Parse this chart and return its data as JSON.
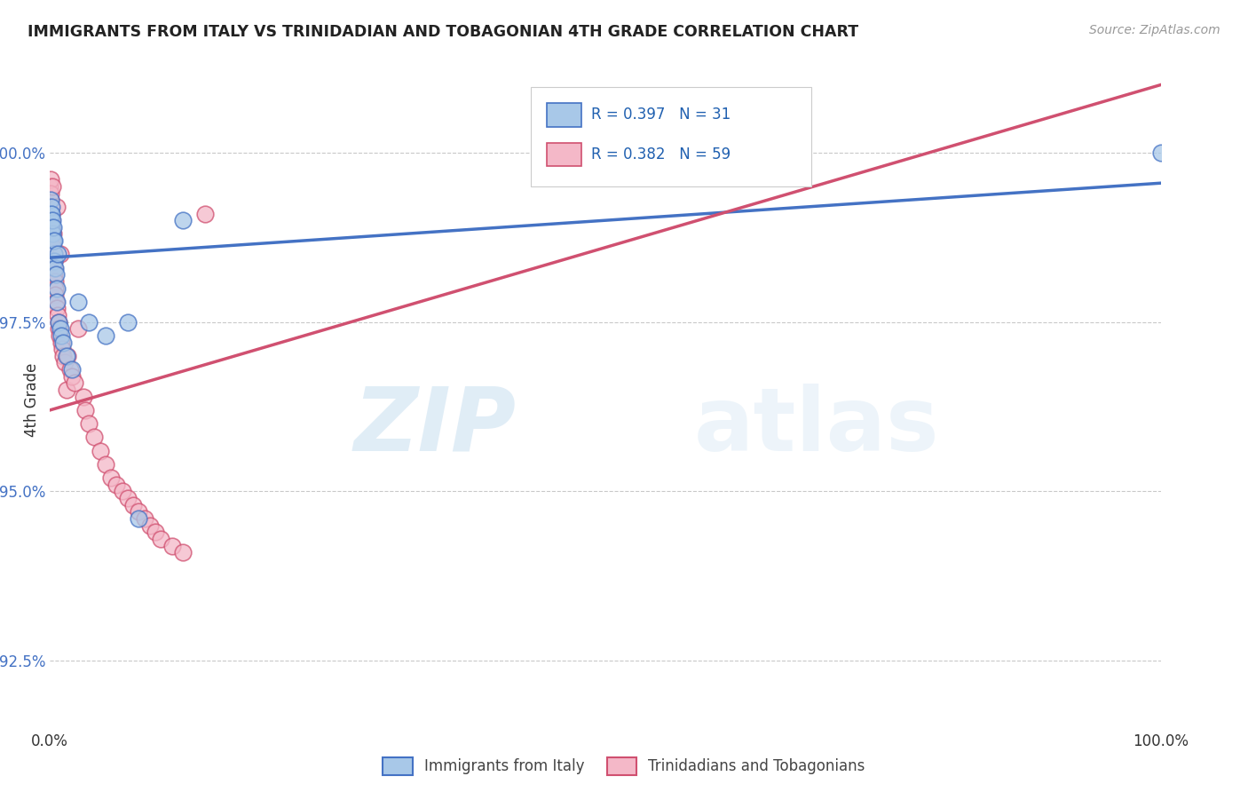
{
  "title": "IMMIGRANTS FROM ITALY VS TRINIDADIAN AND TOBAGONIAN 4TH GRADE CORRELATION CHART",
  "source": "Source: ZipAtlas.com",
  "ylabel": "4th Grade",
  "r_italy": 0.397,
  "n_italy": 31,
  "r_trint": 0.382,
  "n_trint": 59,
  "xlim": [
    0.0,
    100.0
  ],
  "ylim": [
    91.5,
    101.2
  ],
  "yticks": [
    92.5,
    95.0,
    97.5,
    100.0
  ],
  "ytick_labels": [
    "92.5%",
    "95.0%",
    "97.5%",
    "100.0%"
  ],
  "watermark_zip": "ZIP",
  "watermark_atlas": "atlas",
  "color_italy": "#a8c8e8",
  "color_trint": "#f4b8c8",
  "line_italy": "#4472c4",
  "line_trint": "#d05070",
  "italy_x": [
    0.05,
    0.08,
    0.1,
    0.12,
    0.15,
    0.18,
    0.2,
    0.25,
    0.28,
    0.3,
    0.35,
    0.38,
    0.42,
    0.48,
    0.55,
    0.6,
    0.65,
    0.7,
    0.8,
    0.9,
    1.0,
    1.2,
    1.5,
    2.0,
    2.5,
    3.5,
    5.0,
    7.0,
    8.0,
    12.0,
    100.0
  ],
  "italy_y": [
    99.1,
    99.3,
    99.0,
    99.2,
    99.1,
    98.9,
    98.8,
    99.0,
    98.7,
    98.9,
    98.5,
    98.7,
    98.4,
    98.3,
    98.2,
    98.0,
    97.8,
    98.5,
    97.5,
    97.4,
    97.3,
    97.2,
    97.0,
    96.8,
    97.8,
    97.5,
    97.3,
    97.5,
    94.6,
    99.0,
    100.0
  ],
  "trint_x": [
    0.02,
    0.04,
    0.06,
    0.08,
    0.1,
    0.12,
    0.14,
    0.16,
    0.18,
    0.2,
    0.22,
    0.25,
    0.28,
    0.3,
    0.32,
    0.35,
    0.38,
    0.4,
    0.42,
    0.45,
    0.48,
    0.5,
    0.55,
    0.6,
    0.65,
    0.7,
    0.75,
    0.8,
    0.85,
    0.9,
    1.0,
    1.1,
    1.2,
    1.3,
    1.5,
    1.6,
    1.8,
    2.0,
    2.2,
    2.5,
    3.0,
    3.2,
    3.5,
    4.0,
    4.5,
    5.0,
    5.5,
    6.0,
    6.5,
    7.0,
    7.5,
    8.0,
    8.5,
    9.0,
    9.5,
    10.0,
    11.0,
    12.0,
    14.0
  ],
  "trint_y": [
    99.5,
    99.3,
    99.6,
    99.4,
    99.2,
    99.1,
    99.0,
    99.0,
    98.9,
    99.5,
    98.8,
    98.7,
    98.6,
    98.8,
    98.5,
    98.4,
    98.3,
    98.5,
    98.2,
    98.1,
    98.0,
    97.9,
    97.8,
    99.2,
    97.7,
    97.6,
    97.5,
    97.4,
    97.3,
    98.5,
    97.2,
    97.1,
    97.0,
    96.9,
    96.5,
    97.0,
    96.8,
    96.7,
    96.6,
    97.4,
    96.4,
    96.2,
    96.0,
    95.8,
    95.6,
    95.4,
    95.2,
    95.1,
    95.0,
    94.9,
    94.8,
    94.7,
    94.6,
    94.5,
    94.4,
    94.3,
    94.2,
    94.1,
    99.1
  ],
  "italy_regr_x0": 0.0,
  "italy_regr_y0": 98.45,
  "italy_regr_x1": 100.0,
  "italy_regr_y1": 99.55,
  "trint_regr_x0": 0.0,
  "trint_regr_y0": 96.2,
  "trint_regr_x1": 100.0,
  "trint_regr_y1": 101.0
}
